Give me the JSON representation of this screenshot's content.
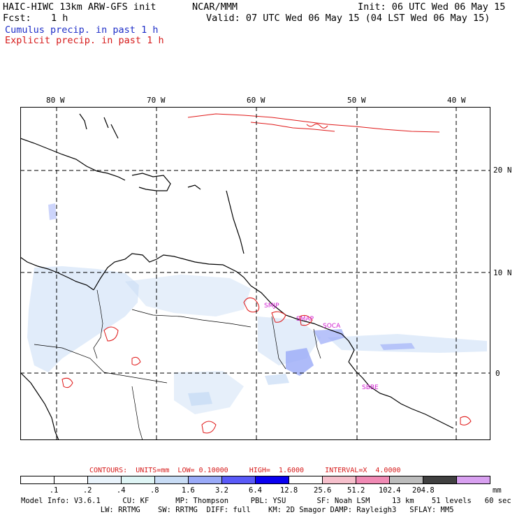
{
  "header": {
    "title_left": "HAIC-HIWC 13km ARW-GFS init",
    "title_mid": "NCAR/MMM",
    "init": "Init: 06 UTC Wed 06 May 15",
    "fcst_label": "Fcst:",
    "fcst_value": "1 h",
    "valid": "Valid: 07 UTC Wed 06 May 15 (04 LST Wed 06 May 15)",
    "cumulus": "Cumulus precip. in past 1 h",
    "explicit": "Explicit precip. in past 1 h"
  },
  "map": {
    "lon_labels": [
      "80 W",
      "70 W",
      "60 W",
      "50 W",
      "40 W"
    ],
    "lat_labels": [
      "20 N",
      "10 N",
      "0"
    ],
    "stations": [
      "SMJP",
      "SMAP",
      "SOCA",
      "SBBE"
    ],
    "colors": {
      "coast": "#000000",
      "cumulus": "#c8dcf5",
      "explicit": "#e01818",
      "grid": "#000000",
      "station": "#d020d0"
    }
  },
  "contours": {
    "text": "CONTOURS:  UNITS=mm  LOW= 0.10000     HIGH=  1.6000     INTERVAL=X  4.0000"
  },
  "colorbar": {
    "colors": [
      "#ffffff",
      "#ffffff",
      "#e9f3fb",
      "#dff5f5",
      "#c8dcf5",
      "#9aaaf8",
      "#5a5af8",
      "#0a00f0",
      "#ffffff",
      "#f6c0cc",
      "#f08ab4",
      "#bcbcbc",
      "#404040",
      "#d8a0f0"
    ],
    "labels": [
      ".1",
      ".2",
      ".4",
      ".8",
      "1.6",
      "3.2",
      "6.4",
      "12.8",
      "25.6",
      "51.2",
      "102.4",
      "204.8"
    ],
    "unit": "mm"
  },
  "footer": {
    "line1": "Model Info: V3.6.1     CU: KF      MP: Thompson     PBL: YSU       SF: Noah LSM     13 km    51 levels   60 sec",
    "line2": "                  LW: RRTMG    SW: RRTMG  DIFF: full    KM: 2D Smagor DAMP: Rayleigh3   SFLAY: MM5"
  }
}
